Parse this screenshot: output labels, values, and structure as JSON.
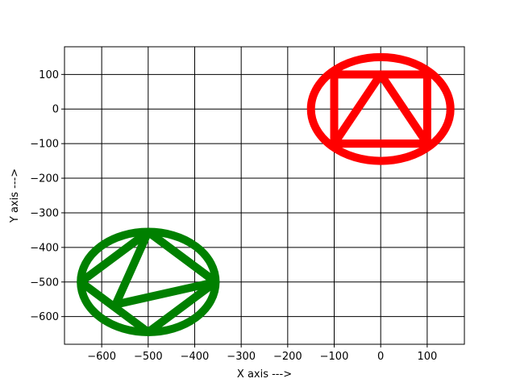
{
  "chart_data": {
    "type": "line",
    "title": "",
    "xlabel": "X axis --->",
    "ylabel": "Y axis --->",
    "xlim": [
      -680,
      180
    ],
    "ylim": [
      -680,
      180
    ],
    "grid": true,
    "xticks": [
      -600,
      -500,
      -400,
      -300,
      -200,
      -100,
      0,
      100
    ],
    "yticks": [
      100,
      0,
      -100,
      -200,
      -300,
      -400,
      -500,
      -600
    ],
    "xtick_labels": [
      "−600",
      "−500",
      "−400",
      "−300",
      "−200",
      "−100",
      "0",
      "100"
    ],
    "ytick_labels": [
      "100",
      "0",
      "−100",
      "−200",
      "−300",
      "−400",
      "−500",
      "−600"
    ],
    "shapes": [
      {
        "kind": "ellipse",
        "color": "#ff0000",
        "center": [
          0,
          0
        ],
        "rx": 150,
        "ry": 150
      },
      {
        "kind": "polygon",
        "color": "#ff0000",
        "points": [
          [
            -100,
            100
          ],
          [
            100,
            100
          ],
          [
            100,
            -100
          ],
          [
            -100,
            -100
          ]
        ]
      },
      {
        "kind": "polygon",
        "color": "#ff0000",
        "points": [
          [
            0,
            100
          ],
          [
            100,
            -100
          ],
          [
            -100,
            -100
          ]
        ]
      },
      {
        "kind": "ellipse",
        "color": "#008000",
        "center": [
          -500,
          -500
        ],
        "rx": 145,
        "ry": 145
      },
      {
        "kind": "polygon",
        "color": "#008000",
        "points": [
          [
            -500,
            -355
          ],
          [
            -355,
            -500
          ],
          [
            -500,
            -645
          ],
          [
            -645,
            -500
          ]
        ]
      },
      {
        "kind": "polygon",
        "color": "#008000",
        "points": [
          [
            -500,
            -355
          ],
          [
            -570,
            -565
          ],
          [
            -355,
            -500
          ]
        ]
      }
    ]
  }
}
